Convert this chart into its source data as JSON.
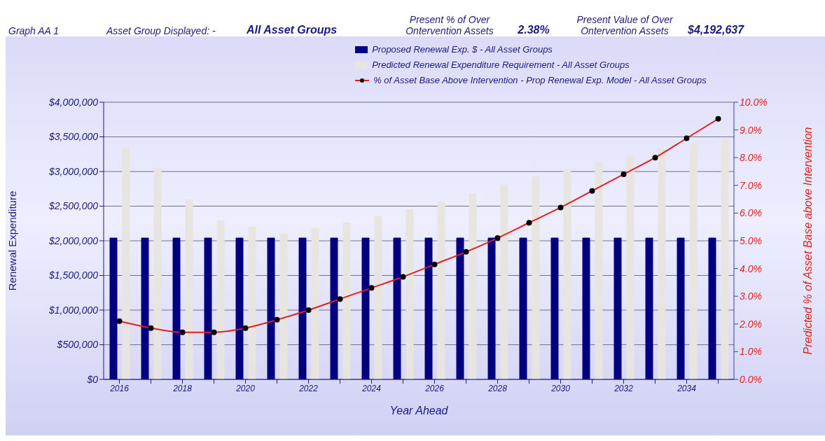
{
  "chart_data": {
    "type": "bar",
    "title": "Graph AA 1",
    "annotations": [
      "Asset Group Displayed: -",
      "All Asset Groups",
      "Present % of Over Ontervention Assets",
      "2.38%",
      "Present Value of Over Ontervention Assets",
      "$4,192,637"
    ],
    "categories": [
      "2016",
      null,
      "2018",
      null,
      "2020",
      null,
      "2022",
      null,
      "2024",
      null,
      "2026",
      null,
      "2028",
      null,
      "2030",
      null,
      "2032",
      null,
      "2034",
      null
    ],
    "xlabel": "Year Ahead",
    "ylabel": "Renewal Expenditure",
    "y2label": "Predicted % of Asset Base above Intervention",
    "series": [
      {
        "name": "Proposed Renewal Exp. $ -  All Asset Groups",
        "color": "#000080",
        "values": [
          2040000,
          2040000,
          2040000,
          2040000,
          2040000,
          2040000,
          2040000,
          2040000,
          2040000,
          2040000,
          2040000,
          2040000,
          2040000,
          2040000,
          2040000,
          2040000,
          2040000,
          2040000,
          2040000,
          2040000
        ]
      },
      {
        "name": "Predicted Renewal Expenditure Requirement -  All Asset Groups",
        "color": "#e8e4e0",
        "values": [
          3340000,
          3050000,
          2590000,
          2290000,
          2200000,
          2100000,
          2180000,
          2260000,
          2350000,
          2450000,
          2560000,
          2680000,
          2800000,
          2920000,
          3030000,
          3130000,
          3230000,
          3320000,
          3400000,
          3470000
        ]
      },
      {
        "name": "% of Asset Base Above Intervention - Prop Renewal Exp. Model -  All Asset Groups",
        "type": "line",
        "axis": "y2",
        "color": "#e02020",
        "values": [
          2.1,
          1.85,
          1.7,
          1.7,
          1.85,
          2.15,
          2.5,
          2.9,
          3.3,
          3.7,
          4.15,
          4.6,
          5.1,
          5.65,
          6.2,
          6.8,
          7.4,
          8.0,
          8.7,
          9.4
        ]
      }
    ],
    "ylim": [
      0,
      4000000
    ],
    "yticks": [
      {
        "value": 0,
        "label": "$0"
      },
      {
        "value": 500000,
        "label": "$500,000"
      },
      {
        "value": 1000000,
        "label": "$1,000,000"
      },
      {
        "value": 1500000,
        "label": "$1,500,000"
      },
      {
        "value": 2000000,
        "label": "$2,000,000"
      },
      {
        "value": 2500000,
        "label": "$2,500,000"
      },
      {
        "value": 3000000,
        "label": "$3,000,000"
      },
      {
        "value": 3500000,
        "label": "$3,500,000"
      },
      {
        "value": 4000000,
        "label": "$4,000,000"
      }
    ],
    "y2lim": [
      0,
      10
    ],
    "y2ticks": [
      {
        "value": 0,
        "label": "0.0%"
      },
      {
        "value": 1,
        "label": "1.0%"
      },
      {
        "value": 2,
        "label": "2.0%"
      },
      {
        "value": 3,
        "label": "3.0%"
      },
      {
        "value": 4,
        "label": "4.0%"
      },
      {
        "value": 5,
        "label": "5.0%"
      },
      {
        "value": 6,
        "label": "6.0%"
      },
      {
        "value": 7,
        "label": "7.0%"
      },
      {
        "value": 8,
        "label": "8.0%"
      },
      {
        "value": 9,
        "label": "9.0%"
      },
      {
        "value": 10,
        "label": "10.0%"
      }
    ],
    "grid": "y",
    "legend": "top",
    "marker": "circle",
    "line_style": "solid"
  }
}
